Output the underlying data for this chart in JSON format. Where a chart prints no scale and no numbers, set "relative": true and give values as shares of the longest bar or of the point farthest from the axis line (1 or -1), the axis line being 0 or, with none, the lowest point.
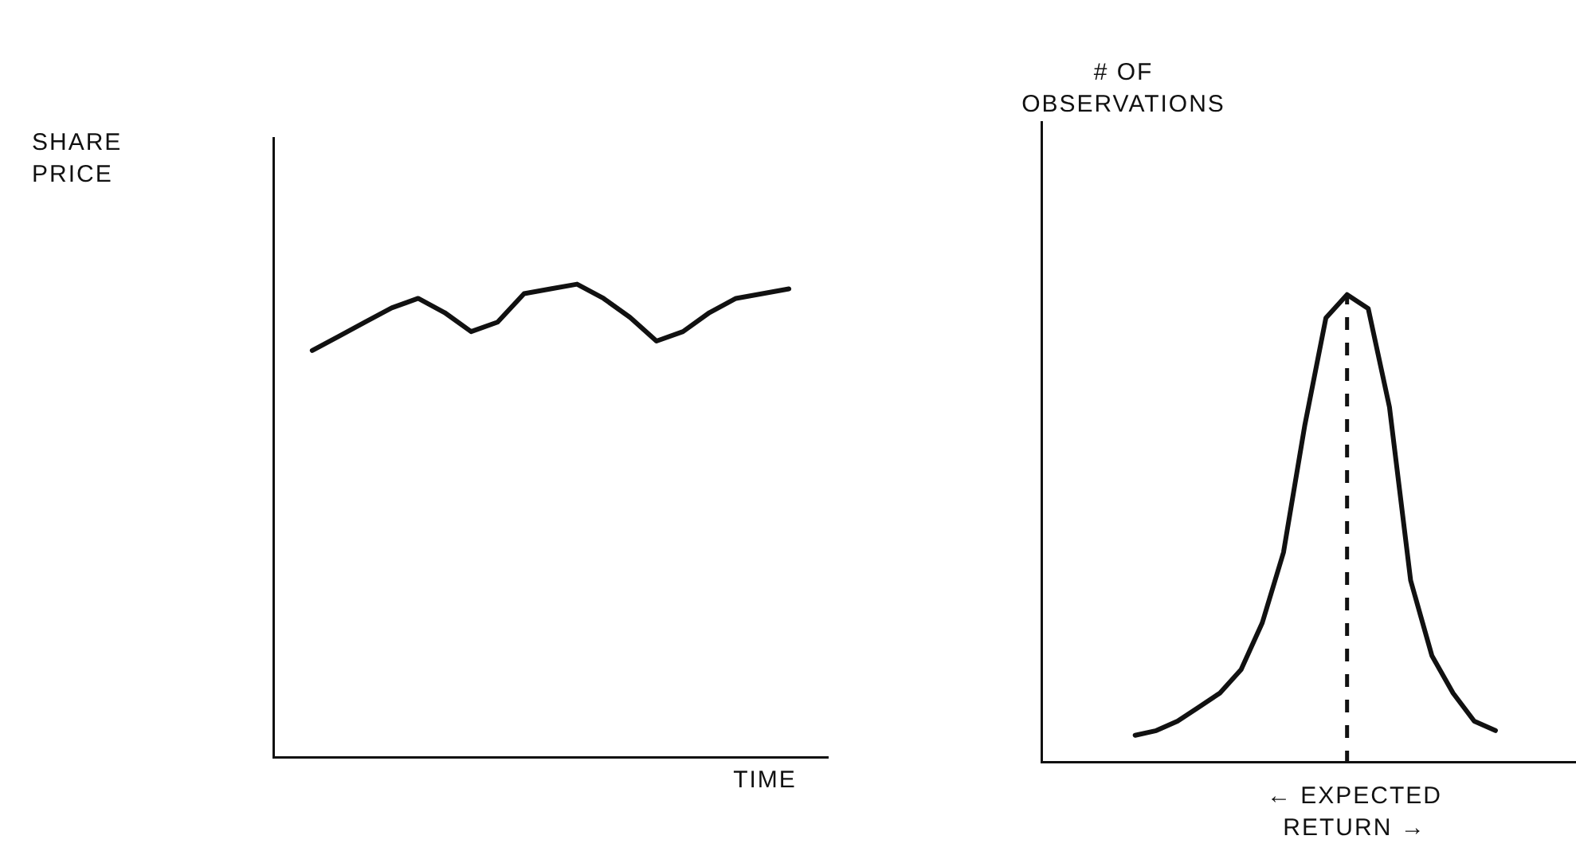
{
  "chart_data": [
    {
      "type": "line",
      "ylabel": "SHARE PRICE",
      "xlabel": "TIME",
      "relative": true,
      "marker": "none",
      "line_style": "solid",
      "categories": [
        null,
        null,
        null,
        null,
        null,
        null,
        null,
        null,
        null,
        null,
        null,
        null,
        null,
        null,
        null,
        null,
        null,
        null,
        null
      ],
      "series": [
        {
          "color": "#111111",
          "values": [
            0.86,
            0.89,
            0.92,
            0.95,
            0.97,
            0.94,
            0.9,
            0.92,
            0.98,
            0.99,
            1,
            0.97,
            0.93,
            0.88,
            0.9,
            0.94,
            0.97,
            0.98,
            0.99
          ]
        }
      ]
    },
    {
      "type": "line",
      "ylabel": "# OF OBSERVATIONS",
      "xlabel": "← EXPECTED RETURN →",
      "relative": true,
      "marker": "none",
      "line_style": "solid",
      "categories": [
        null,
        null,
        null,
        null,
        null,
        null,
        null,
        null,
        null,
        null,
        null,
        null,
        null,
        null,
        null,
        null,
        null,
        null
      ],
      "series": [
        {
          "color": "#111111",
          "values": [
            0.06,
            0.07,
            0.09,
            0.12,
            0.15,
            0.2,
            0.3,
            0.45,
            0.72,
            0.95,
            1,
            0.97,
            0.76,
            0.39,
            0.23,
            0.15,
            0.09,
            0.07
          ]
        }
      ],
      "ref_lines": [
        {
          "axis": "x",
          "color": "#111111",
          "line_style": "dashed"
        }
      ]
    }
  ]
}
